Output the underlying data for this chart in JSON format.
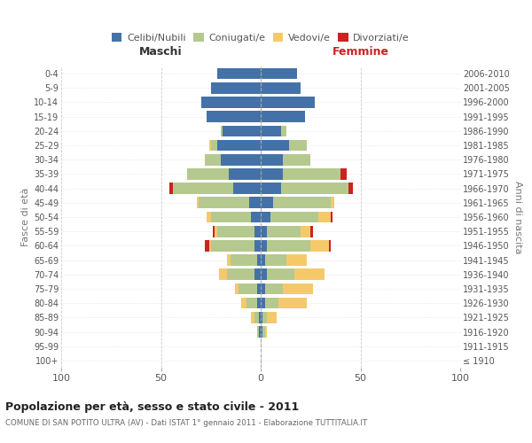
{
  "age_groups": [
    "100+",
    "95-99",
    "90-94",
    "85-89",
    "80-84",
    "75-79",
    "70-74",
    "65-69",
    "60-64",
    "55-59",
    "50-54",
    "45-49",
    "40-44",
    "35-39",
    "30-34",
    "25-29",
    "20-24",
    "15-19",
    "10-14",
    "5-9",
    "0-4"
  ],
  "birth_years": [
    "≤ 1910",
    "1911-1915",
    "1916-1920",
    "1921-1925",
    "1926-1930",
    "1931-1935",
    "1936-1940",
    "1941-1945",
    "1946-1950",
    "1951-1955",
    "1956-1960",
    "1961-1965",
    "1966-1970",
    "1971-1975",
    "1976-1980",
    "1981-1985",
    "1986-1990",
    "1991-1995",
    "1996-2000",
    "2001-2005",
    "2006-2010"
  ],
  "maschi": {
    "celibi": [
      0,
      0,
      1,
      1,
      2,
      2,
      3,
      2,
      3,
      3,
      5,
      6,
      14,
      16,
      20,
      22,
      19,
      27,
      30,
      25,
      22
    ],
    "coniugati": [
      0,
      0,
      1,
      2,
      5,
      9,
      14,
      13,
      22,
      19,
      20,
      25,
      30,
      21,
      8,
      3,
      1,
      0,
      0,
      0,
      0
    ],
    "vedovi": [
      0,
      0,
      0,
      2,
      3,
      2,
      4,
      2,
      1,
      1,
      2,
      1,
      0,
      0,
      0,
      1,
      0,
      0,
      0,
      0,
      0
    ],
    "divorziati": [
      0,
      0,
      0,
      0,
      0,
      0,
      0,
      0,
      2,
      1,
      0,
      0,
      2,
      0,
      0,
      0,
      0,
      0,
      0,
      0,
      0
    ]
  },
  "femmine": {
    "nubili": [
      0,
      0,
      1,
      1,
      2,
      2,
      3,
      2,
      3,
      3,
      5,
      6,
      10,
      11,
      11,
      14,
      10,
      22,
      27,
      20,
      18
    ],
    "coniugate": [
      0,
      0,
      1,
      2,
      7,
      9,
      14,
      11,
      22,
      17,
      24,
      29,
      34,
      29,
      14,
      9,
      3,
      0,
      0,
      0,
      0
    ],
    "vedove": [
      0,
      0,
      1,
      5,
      14,
      15,
      15,
      10,
      9,
      5,
      6,
      2,
      0,
      0,
      0,
      0,
      0,
      0,
      0,
      0,
      0
    ],
    "divorziate": [
      0,
      0,
      0,
      0,
      0,
      0,
      0,
      0,
      1,
      1,
      1,
      0,
      2,
      3,
      0,
      0,
      0,
      0,
      0,
      0,
      0
    ]
  },
  "colors": {
    "celibi": "#4472a8",
    "coniugati": "#b5c98e",
    "vedovi": "#f5c96a",
    "divorziati": "#cc2222"
  },
  "xlim": 100,
  "title": "Popolazione per età, sesso e stato civile - 2011",
  "subtitle": "COMUNE DI SAN POTITO ULTRA (AV) - Dati ISTAT 1° gennaio 2011 - Elaborazione TUTTITALIA.IT",
  "ylabel_left": "Fasce di età",
  "ylabel_right": "Anni di nascita",
  "xlabel_left": "Maschi",
  "xlabel_right": "Femmine"
}
